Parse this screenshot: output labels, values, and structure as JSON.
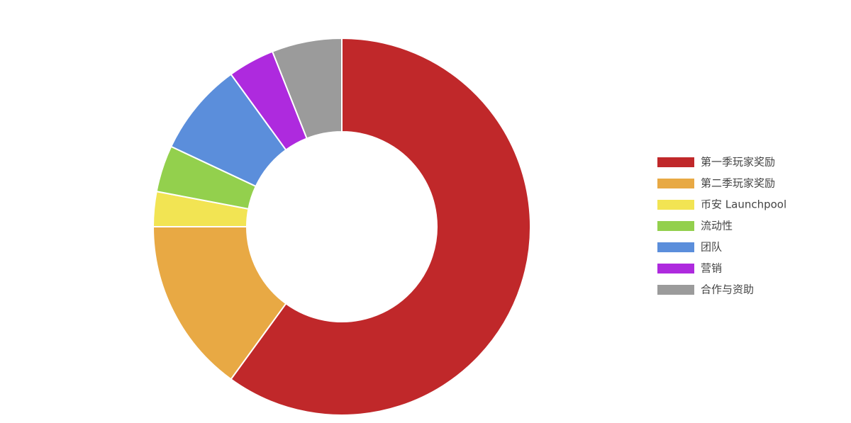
{
  "chart_data": {
    "type": "pie",
    "categories": [
      "第一季玩家奖励",
      "第二季玩家奖励",
      "币安 Launchpool",
      "流动性",
      "团队",
      "营销",
      "合作与资助"
    ],
    "values": [
      60,
      15,
      3,
      4,
      8,
      4,
      6
    ],
    "colors": [
      "#c0282a",
      "#e8a944",
      "#f2e453",
      "#93d04d",
      "#5b8edb",
      "#ae2ade",
      "#9b9b9b"
    ],
    "legend": "right"
  }
}
